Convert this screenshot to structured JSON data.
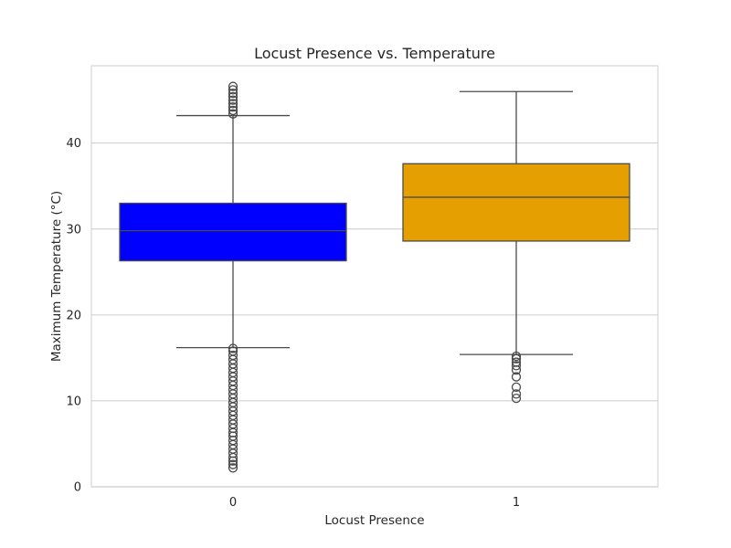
{
  "chart_data": {
    "type": "box",
    "title": "Locust Presence vs. Temperature",
    "xlabel": "Locust Presence",
    "ylabel": "Maximum Temperature (°C)",
    "categories": [
      "0",
      "1"
    ],
    "ylim": [
      0,
      49
    ],
    "yticks": [
      0,
      10,
      20,
      30,
      40
    ],
    "grid": true,
    "series": [
      {
        "category": "0",
        "color": "#0000ff",
        "whisker_low": 16.2,
        "q1": 26.3,
        "median": 29.8,
        "q3": 33.0,
        "whisker_high": 43.2,
        "outliers": [
          2.2,
          2.6,
          3.0,
          3.4,
          3.9,
          4.4,
          4.9,
          5.4,
          5.9,
          6.3,
          6.8,
          7.3,
          7.8,
          8.3,
          8.8,
          9.3,
          9.8,
          10.3,
          10.8,
          11.3,
          11.8,
          12.3,
          12.8,
          13.3,
          13.8,
          14.3,
          14.8,
          15.3,
          15.8,
          16.1,
          43.4,
          43.8,
          44.2,
          44.6,
          45.0,
          45.4,
          45.8,
          46.2,
          46.6
        ]
      },
      {
        "category": "1",
        "color": "#e69f00",
        "whisker_low": 15.4,
        "q1": 28.6,
        "median": 33.7,
        "q3": 37.6,
        "whisker_high": 46.0,
        "outliers": [
          10.3,
          10.8,
          11.6,
          12.8,
          13.6,
          14.1,
          14.5,
          14.9,
          15.2
        ]
      }
    ]
  }
}
